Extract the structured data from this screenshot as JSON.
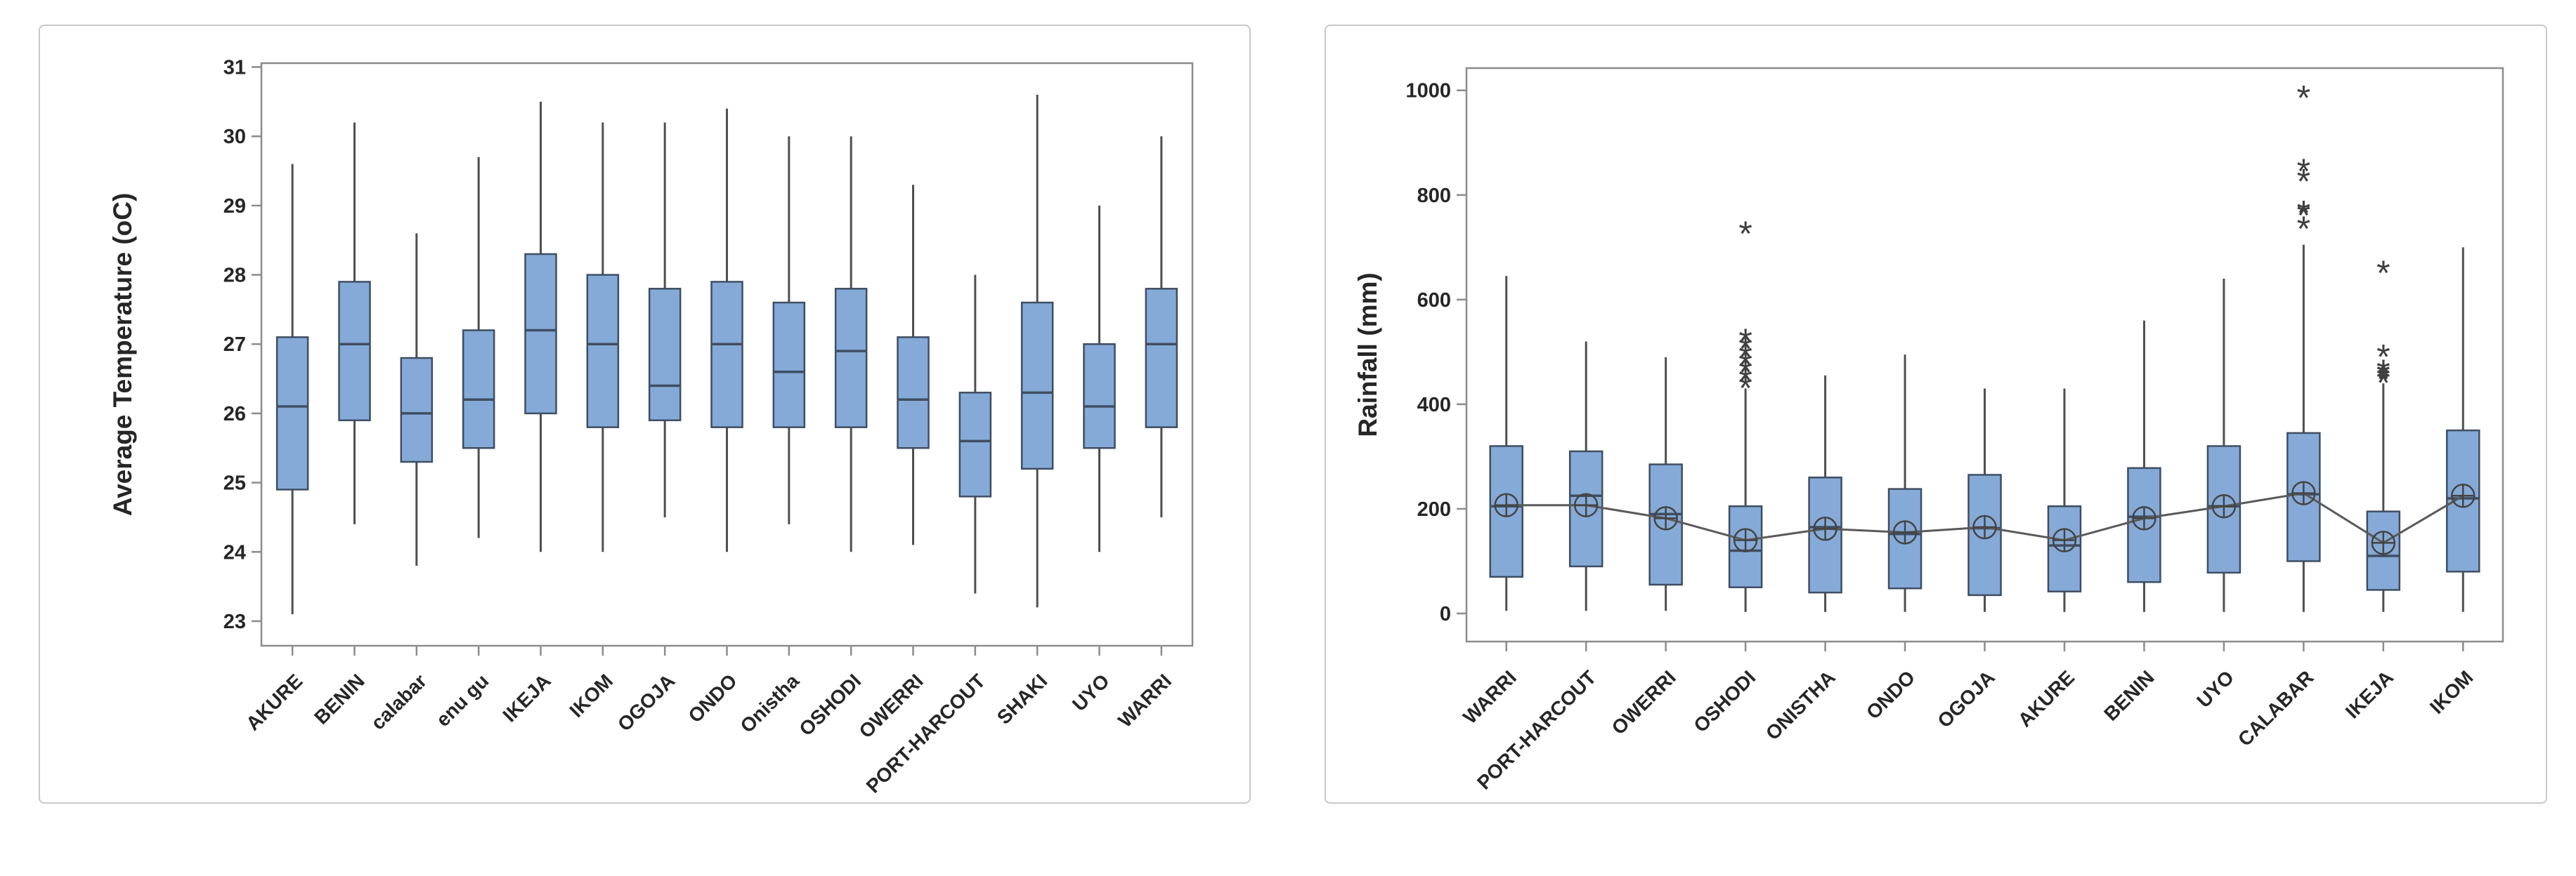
{
  "colors": {
    "box_fill": "#86aad7",
    "box_stroke": "#3e4e63",
    "whisker": "#4f4f4f",
    "median": "#3e4e63",
    "frame": "#8c8c8c",
    "tick": "#8c8c8c",
    "text": "#262626",
    "mean_line": "#5a5a5a",
    "mean_marker": "#444444",
    "outlier": "#3f3f3f",
    "panel_border": "#c8c8c8",
    "background": "#ffffff"
  },
  "chart_data": [
    {
      "type": "box",
      "title": "",
      "xlabel": "",
      "ylabel": "Average Temperature (oC)",
      "ylim": [
        22.645,
        31.056
      ],
      "yticks": [
        23,
        24,
        25,
        26,
        27,
        28,
        29,
        30,
        31
      ],
      "grid": "off",
      "legend": "none",
      "mean_line": false,
      "categories": [
        "AKURE",
        "BENIN",
        "calabar",
        "enu gu",
        "IKEJA",
        "IKOM",
        "OGOJA",
        "ONDO",
        "Onistha",
        "OSHODI",
        "OWERRI",
        "PORT-HARCOUT",
        "SHAKI",
        "UYO",
        "WARRI"
      ],
      "boxes": [
        {
          "low": 23.1,
          "q1": 24.9,
          "median": 26.1,
          "q3": 27.1,
          "high": 29.6
        },
        {
          "low": 24.4,
          "q1": 25.9,
          "median": 27.0,
          "q3": 27.9,
          "high": 30.2
        },
        {
          "low": 23.8,
          "q1": 25.3,
          "median": 26.0,
          "q3": 26.8,
          "high": 28.6
        },
        {
          "low": 24.2,
          "q1": 25.5,
          "median": 26.2,
          "q3": 27.2,
          "high": 29.7
        },
        {
          "low": 24.0,
          "q1": 26.0,
          "median": 27.2,
          "q3": 28.3,
          "high": 30.5
        },
        {
          "low": 24.0,
          "q1": 25.8,
          "median": 27.0,
          "q3": 28.0,
          "high": 30.2
        },
        {
          "low": 24.5,
          "q1": 25.9,
          "median": 26.4,
          "q3": 27.8,
          "high": 30.2
        },
        {
          "low": 24.0,
          "q1": 25.8,
          "median": 27.0,
          "q3": 27.9,
          "high": 30.4
        },
        {
          "low": 24.4,
          "q1": 25.8,
          "median": 26.6,
          "q3": 27.6,
          "high": 30.0
        },
        {
          "low": 24.0,
          "q1": 25.8,
          "median": 26.9,
          "q3": 27.8,
          "high": 30.0
        },
        {
          "low": 24.1,
          "q1": 25.5,
          "median": 26.2,
          "q3": 27.1,
          "high": 29.3
        },
        {
          "low": 23.4,
          "q1": 24.8,
          "median": 25.6,
          "q3": 26.3,
          "high": 28.0
        },
        {
          "low": 23.2,
          "q1": 25.2,
          "median": 26.3,
          "q3": 27.6,
          "high": 30.6
        },
        {
          "low": 24.0,
          "q1": 25.5,
          "median": 26.1,
          "q3": 27.0,
          "high": 29.0
        },
        {
          "low": 24.5,
          "q1": 25.8,
          "median": 27.0,
          "q3": 27.8,
          "high": 30.0
        }
      ]
    },
    {
      "type": "box",
      "title": "",
      "xlabel": "",
      "ylabel": "Rainfall (mm)",
      "ylim": [
        -53.7,
        1042.6
      ],
      "yticks": [
        0,
        200,
        400,
        600,
        800,
        1000
      ],
      "grid": "off",
      "legend": "none",
      "mean_line": true,
      "categories": [
        "WARRI",
        "PORT-HARCOUT",
        "OWERRI",
        "OSHODI",
        "ONISTHA",
        "ONDO",
        "OGOJA",
        "AKURE",
        "BENIN",
        "UYO",
        "CALABAR",
        "IKEJA",
        "IKOM"
      ],
      "boxes": [
        {
          "low": 5,
          "q1": 70,
          "median": 205,
          "q3": 320,
          "high": 645,
          "mean": 207,
          "outliers": []
        },
        {
          "low": 5,
          "q1": 90,
          "median": 225,
          "q3": 310,
          "high": 520,
          "mean": 207,
          "outliers": []
        },
        {
          "low": 5,
          "q1": 55,
          "median": 190,
          "q3": 285,
          "high": 490,
          "mean": 182,
          "outliers": []
        },
        {
          "low": 3,
          "q1": 50,
          "median": 120,
          "q3": 205,
          "high": 430,
          "mean": 140,
          "outliers": [
            440,
            455,
            470,
            485,
            500,
            515,
            530,
            735
          ]
        },
        {
          "low": 3,
          "q1": 40,
          "median": 165,
          "q3": 260,
          "high": 455,
          "mean": 162,
          "outliers": []
        },
        {
          "low": 3,
          "q1": 48,
          "median": 152,
          "q3": 238,
          "high": 495,
          "mean": 155,
          "outliers": []
        },
        {
          "low": 3,
          "q1": 35,
          "median": 163,
          "q3": 265,
          "high": 430,
          "mean": 165,
          "outliers": []
        },
        {
          "low": 3,
          "q1": 42,
          "median": 130,
          "q3": 205,
          "high": 430,
          "mean": 140,
          "outliers": []
        },
        {
          "low": 3,
          "q1": 60,
          "median": 185,
          "q3": 278,
          "high": 560,
          "mean": 182,
          "outliers": []
        },
        {
          "low": 3,
          "q1": 78,
          "median": 205,
          "q3": 320,
          "high": 640,
          "mean": 205,
          "outliers": []
        },
        {
          "low": 3,
          "q1": 100,
          "median": 228,
          "q3": 345,
          "high": 705,
          "mean": 230,
          "outliers": [
            745,
            770,
            775,
            835,
            855,
            995
          ]
        },
        {
          "low": 3,
          "q1": 45,
          "median": 110,
          "q3": 195,
          "high": 440,
          "mean": 135,
          "outliers": [
            450,
            457,
            464,
            471,
            500,
            660
          ]
        },
        {
          "low": 3,
          "q1": 80,
          "median": 220,
          "q3": 350,
          "high": 700,
          "mean": 225,
          "outliers": []
        }
      ]
    }
  ]
}
